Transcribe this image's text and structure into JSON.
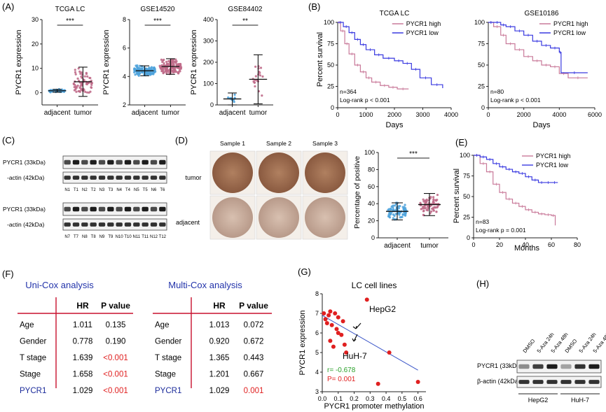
{
  "panels": {
    "A": {
      "label": "(A)",
      "ylabel": "PYCR1 expression",
      "sub": [
        {
          "title": "TCGA LC",
          "sig": "***",
          "groups": [
            "adjacent",
            "tumor"
          ],
          "yticks": [
            "0",
            "10",
            "20",
            "30"
          ],
          "ylim": [
            -5,
            30
          ]
        },
        {
          "title": "GSE14520",
          "sig": "***",
          "groups": [
            "adjacent",
            "tumor"
          ],
          "yticks": [
            "2",
            "4",
            "6",
            "8"
          ],
          "ylim": [
            2,
            8
          ]
        },
        {
          "title": "GSE84402",
          "sig": "**",
          "groups": [
            "adjacent",
            "tumor"
          ],
          "yticks": [
            "0",
            "100",
            "200",
            "300",
            "400"
          ],
          "ylim": [
            0,
            400
          ]
        }
      ]
    },
    "B": {
      "label": "(B)",
      "ylabel": "Percent survival",
      "xlabel": "Days",
      "sub": [
        {
          "title": "TCGA LC",
          "legend": [
            "PYCR1 high",
            "PYCR1 low"
          ],
          "n": "n=364",
          "logrank": "Log-rank  p < 0.001",
          "xticks": [
            "0",
            "1000",
            "2000",
            "3000",
            "4000"
          ],
          "yticks": [
            "0",
            "25",
            "50",
            "75",
            "100"
          ]
        },
        {
          "title": "GSE10186",
          "legend": [
            "PYCR1 high",
            "PYCR1 low"
          ],
          "n": "n=80",
          "logrank": "Log-rank  p < 0.001",
          "xticks": [
            "0",
            "2000",
            "4000",
            "6000"
          ],
          "yticks": [
            "0",
            "25",
            "50",
            "75",
            "100"
          ]
        }
      ]
    },
    "C": {
      "label": "(C)",
      "blots": [
        {
          "top": "PYCR1 (33kDa)",
          "bottom": "-actin (42kDa)",
          "lanes": [
            "N1",
            "T1",
            "N2",
            "T2",
            "N3",
            "T3",
            "N4",
            "T4",
            "N5",
            "T5",
            "N6",
            "T6"
          ]
        },
        {
          "top": "PYCR1 (33kDa)",
          "bottom": "-actin (42kDa)",
          "lanes": [
            "N7",
            "T7",
            "N8",
            "T8",
            "N9",
            "T9",
            "N10",
            "T10",
            "N11",
            "T11",
            "N12",
            "T12"
          ]
        }
      ]
    },
    "D": {
      "label": "(D)",
      "samples": [
        "Sample 1",
        "Sample 2",
        "Sample 3"
      ],
      "rows": [
        "tumor",
        "adjacent"
      ],
      "ylabel": "Percentage of positive",
      "groups": [
        "adjacent",
        "tumor"
      ],
      "sig": "***",
      "yticks": [
        "0",
        "20",
        "40",
        "60",
        "80",
        "100"
      ]
    },
    "E": {
      "label": "(E)",
      "legend": [
        "PYCR1 high",
        "PYCR1 low"
      ],
      "ylabel": "Percent survival",
      "xlabel": "Months",
      "n": "n=83",
      "logrank": "Log-rank  p = 0.001",
      "xticks": [
        "0",
        "20",
        "40",
        "60",
        "80"
      ],
      "yticks": [
        "0",
        "25",
        "50",
        "75",
        "100"
      ]
    },
    "F": {
      "label": "(F)",
      "tables": [
        {
          "title": "Uni-Cox analysis",
          "headers": [
            "HR",
            "P value"
          ],
          "rows": [
            [
              "Age",
              "1.011",
              "0.135"
            ],
            [
              "Gender",
              "0.778",
              "0.190"
            ],
            [
              "T stage",
              "1.639",
              "<0.001"
            ],
            [
              "Stage",
              "1.658",
              "<0.001"
            ],
            [
              "PYCR1",
              "1.029",
              "<0.001"
            ]
          ]
        },
        {
          "title": "Multi-Cox analysis",
          "headers": [
            "HR",
            "P value"
          ],
          "rows": [
            [
              "Age",
              "1.013",
              "0.072"
            ],
            [
              "Gender",
              "0.920",
              "0.672"
            ],
            [
              "T stage",
              "1.365",
              "0.443"
            ],
            [
              "Stage",
              "1.201",
              "0.667"
            ],
            [
              "PYCR1",
              "1.029",
              "0.001"
            ]
          ]
        }
      ]
    },
    "G": {
      "label": "(G)",
      "title": "LC cell lines",
      "ylabel": "PYCR1 expression",
      "xlabel": "PYCR1 promoter methylation",
      "annot1": "HepG2",
      "annot2": "HuH-7",
      "r": "r= -0.678",
      "p": "P= 0.001",
      "xticks": [
        "0.0",
        "0.1",
        "0.2",
        "0.3",
        "0.4",
        "0.5",
        "0.6"
      ],
      "yticks": [
        "3",
        "4",
        "5",
        "6",
        "7",
        "8"
      ]
    },
    "H": {
      "label": "(H)",
      "lanes": [
        "DMSO",
        "5-Aza 24h",
        "5-Aza 48h",
        "DMSO",
        "5-Aza 24h",
        "5-Aza 48h"
      ],
      "rows": [
        "PYCR1 (33kDa)",
        "β-actin (42kDa)"
      ],
      "cells": [
        "HepG2",
        "HuH-7"
      ]
    }
  },
  "colors": {
    "high": "#c97a9a",
    "low": "#3a3ae0",
    "blue_dot": "#4fa3dc",
    "pink_dot": "#c06b8a",
    "red": "#e02020",
    "green": "#2aa02a",
    "title_blue": "#2233aa",
    "pycr_blue": "#1a2a9a"
  },
  "chart_data": [
    {
      "type": "scatter",
      "title": "TCGA LC",
      "categories": [
        "adjacent",
        "tumor"
      ],
      "ylabel": "PYCR1 expression",
      "ylim": [
        -5,
        30
      ],
      "series": [
        {
          "values": [
            0.8,
            4.5
          ],
          "sd": [
            0.6,
            6.0
          ]
        }
      ]
    },
    {
      "type": "scatter",
      "title": "GSE14520",
      "categories": [
        "adjacent",
        "tumor"
      ],
      "ylabel": "PYCR1 expression",
      "ylim": [
        2,
        8
      ],
      "series": [
        {
          "values": [
            4.4,
            4.7
          ],
          "sd": [
            0.35,
            0.55
          ]
        }
      ]
    },
    {
      "type": "scatter",
      "title": "GSE84402",
      "categories": [
        "adjacent",
        "tumor"
      ],
      "ylabel": "PYCR1 expression",
      "ylim": [
        0,
        400
      ],
      "series": [
        {
          "values": [
            28,
            120
          ],
          "sd": [
            28,
            115
          ]
        }
      ]
    },
    {
      "type": "line",
      "title": "TCGA LC",
      "xlabel": "Days",
      "ylabel": "Percent survival",
      "xlim": [
        0,
        4000
      ],
      "ylim": [
        0,
        100
      ],
      "series": [
        {
          "name": "PYCR1 high",
          "x": [
            0,
            100,
            250,
            400,
            600,
            800,
            1000,
            1200,
            1500,
            1800,
            2100,
            2500
          ],
          "y": [
            100,
            90,
            75,
            63,
            50,
            42,
            35,
            30,
            26,
            24,
            22,
            22
          ]
        },
        {
          "name": "PYCR1 low",
          "x": [
            0,
            200,
            400,
            600,
            800,
            1000,
            1300,
            1600,
            2000,
            2300,
            2600,
            2900,
            3300,
            3700
          ],
          "y": [
            100,
            95,
            88,
            80,
            74,
            68,
            62,
            58,
            55,
            52,
            45,
            35,
            27,
            23
          ]
        }
      ]
    },
    {
      "type": "line",
      "title": "GSE10186",
      "xlabel": "Days",
      "ylabel": "Percent survival",
      "xlim": [
        0,
        6000
      ],
      "ylim": [
        0,
        100
      ],
      "series": [
        {
          "name": "PYCR1 high",
          "x": [
            0,
            300,
            700,
            1000,
            1500,
            2000,
            2500,
            3000,
            3500,
            4000,
            4500,
            5600
          ],
          "y": [
            100,
            95,
            85,
            75,
            68,
            60,
            55,
            50,
            48,
            40,
            35,
            35
          ]
        },
        {
          "name": "PYCR1 low",
          "x": [
            0,
            300,
            700,
            1000,
            1500,
            2000,
            2500,
            3000,
            3500,
            4000,
            4100,
            5600
          ],
          "y": [
            100,
            100,
            97,
            95,
            90,
            85,
            78,
            73,
            70,
            65,
            41,
            41
          ]
        }
      ]
    },
    {
      "type": "scatter",
      "categories": [
        "adjacent",
        "tumor"
      ],
      "ylabel": "Percentage of positive",
      "ylim": [
        0,
        100
      ],
      "series": [
        {
          "values": [
            31,
            39
          ],
          "sd": [
            10,
            13
          ]
        }
      ]
    },
    {
      "type": "line",
      "xlabel": "Months",
      "ylabel": "Percent survival",
      "xlim": [
        0,
        80
      ],
      "ylim": [
        0,
        100
      ],
      "series": [
        {
          "name": "PYCR1 high",
          "x": [
            0,
            5,
            10,
            15,
            20,
            25,
            30,
            35,
            40,
            45,
            50,
            55,
            60,
            63
          ],
          "y": [
            100,
            90,
            80,
            65,
            55,
            47,
            42,
            38,
            34,
            31,
            29,
            28,
            27,
            15
          ]
        },
        {
          "name": "PYCR1 low",
          "x": [
            0,
            5,
            10,
            15,
            20,
            25,
            30,
            35,
            40,
            45,
            50,
            55,
            60,
            65
          ],
          "y": [
            100,
            98,
            95,
            90,
            86,
            83,
            80,
            78,
            74,
            70,
            67,
            67,
            67,
            67
          ]
        }
      ]
    },
    {
      "type": "scatter",
      "title": "LC cell lines",
      "xlabel": "PYCR1 promoter methylation",
      "ylabel": "PYCR1 expression",
      "xlim": [
        0,
        0.65
      ],
      "ylim": [
        3,
        8
      ],
      "series": [
        {
          "x": [
            0.01,
            0.02,
            0.03,
            0.04,
            0.05,
            0.06,
            0.08,
            0.09,
            0.1,
            0.12,
            0.13,
            0.15,
            0.05,
            0.07,
            0.1,
            0.14,
            0.28,
            0.35,
            0.42,
            0.6
          ],
          "y": [
            7.0,
            6.7,
            6.5,
            6.9,
            7.1,
            6.4,
            7.0,
            6.2,
            6.8,
            5.9,
            6.6,
            5.0,
            5.6,
            5.3,
            6.0,
            5.4,
            7.7,
            3.4,
            5.0,
            3.5
          ]
        }
      ]
    }
  ]
}
